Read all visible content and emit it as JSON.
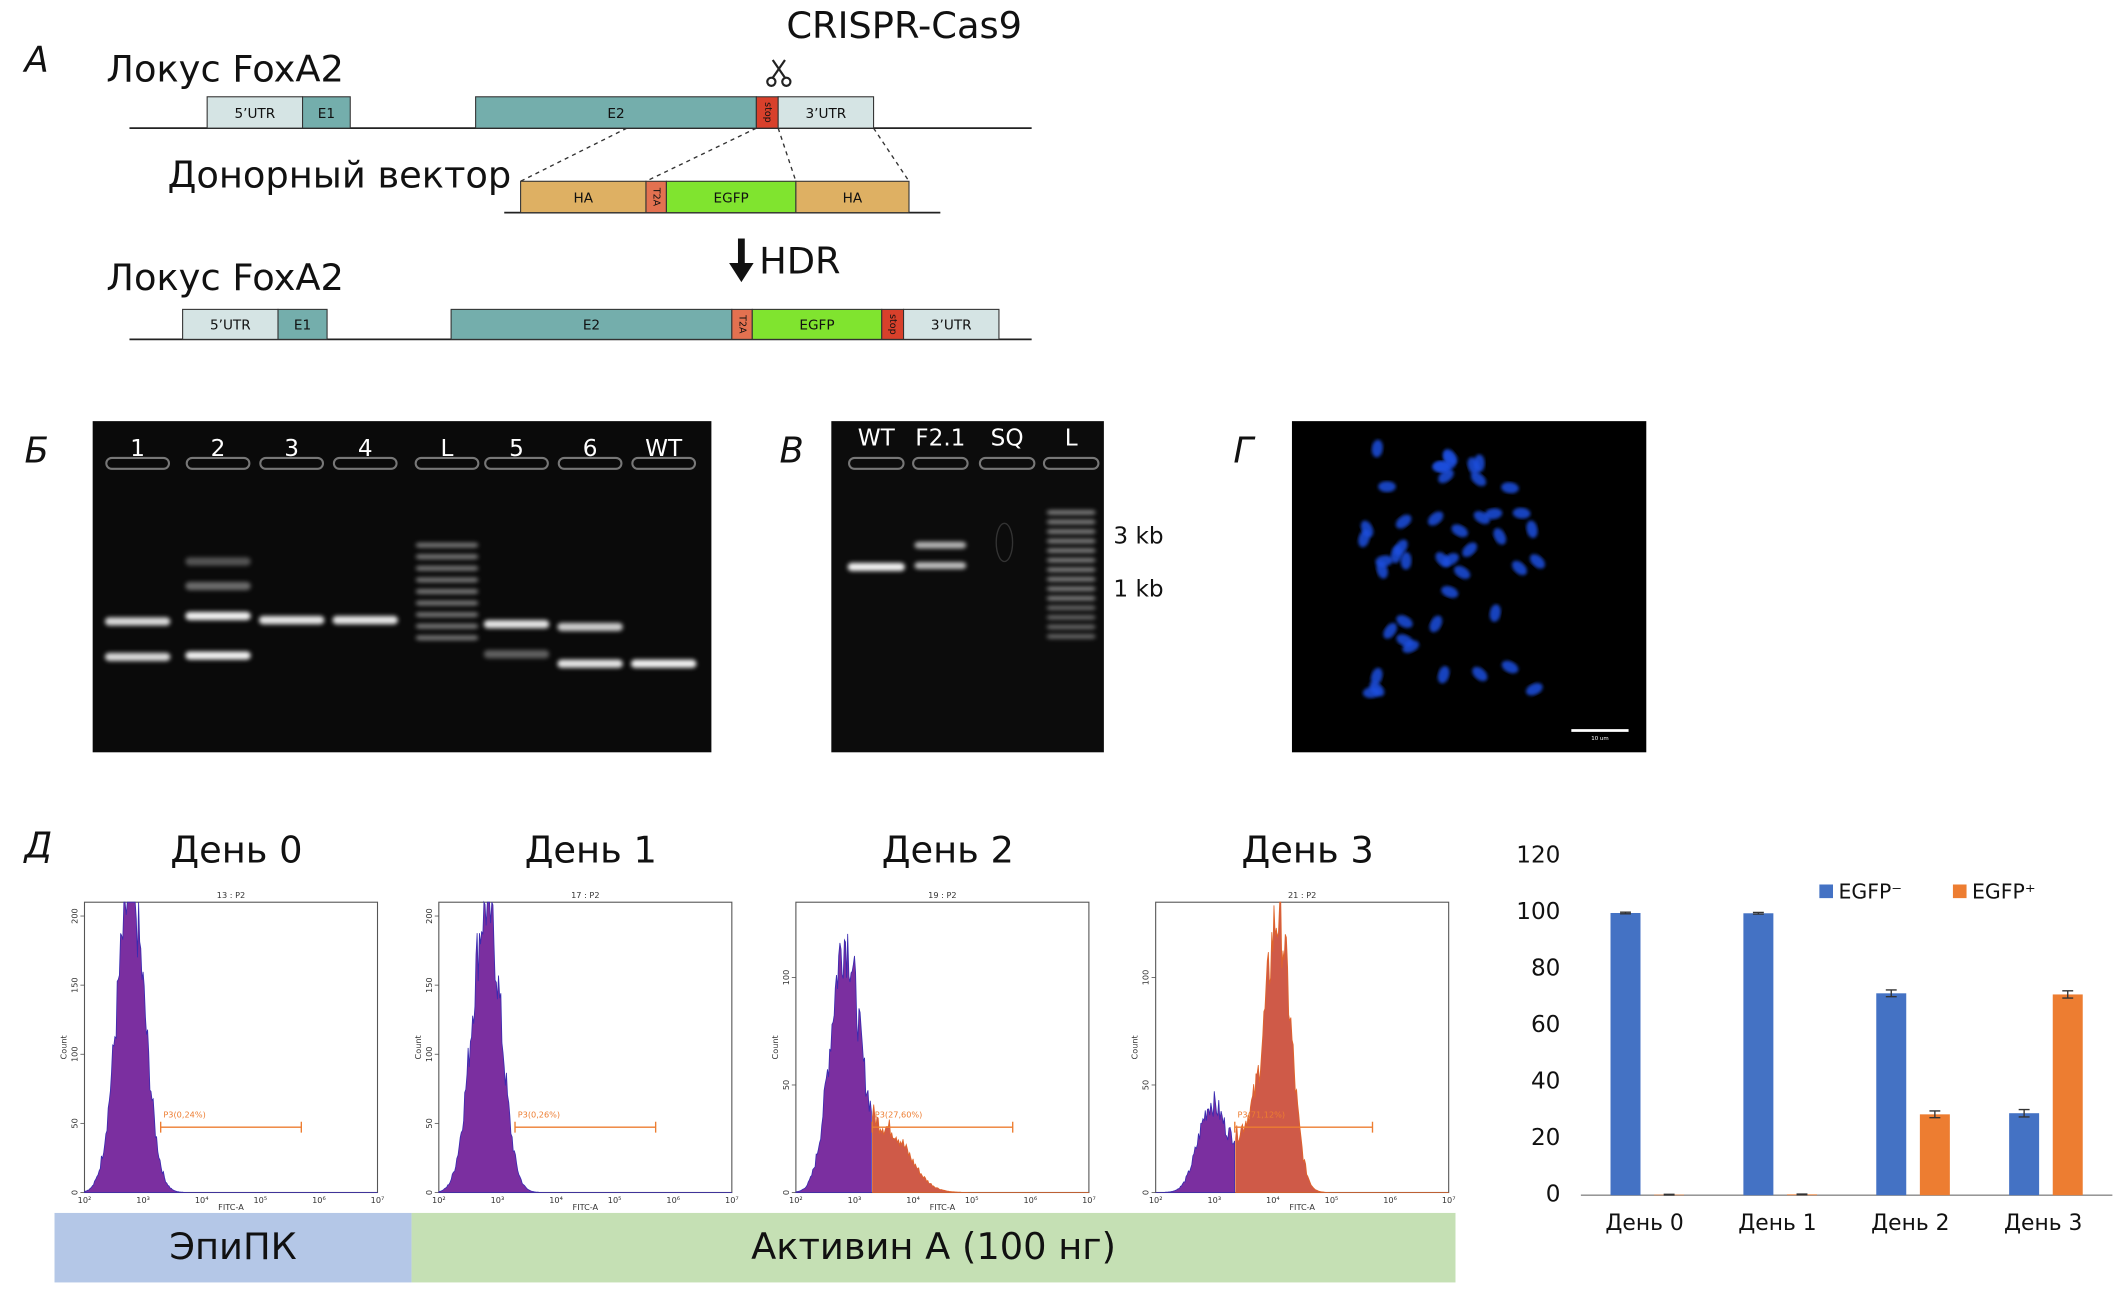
{
  "panel_labels": [
    "А",
    "Б",
    "В",
    "Г",
    "Д"
  ],
  "panel_a": {
    "crispr": "CRISPR-Cas9",
    "locus_top": "Локус FoxA2",
    "locus_top_parts": [
      "5’UTR",
      "E1",
      "E2",
      "stop",
      "3’UTR"
    ],
    "donor": "Донорный вектор",
    "donor_parts": [
      "HA",
      "T2A",
      "EGFP",
      "HA"
    ],
    "hdr": "HDR",
    "locus_bottom": "Локус FoxA2",
    "locus_bottom_parts": [
      "5’UTR",
      "E1",
      "E2",
      "T2A",
      "EGFP",
      "stop",
      "3’UTR"
    ]
  },
  "panel_b": {
    "lanes": [
      "1",
      "2",
      "3",
      "4",
      "L",
      "5",
      "6",
      "WT"
    ]
  },
  "panel_v": {
    "lanes": [
      "WT",
      "F2.1",
      "SQ",
      "L"
    ],
    "markers": [
      "3 kb",
      "1 kb"
    ]
  },
  "panel_g": {
    "scale_bar": "10 um"
  },
  "panel_d": {
    "days": [
      "День 0",
      "День 1",
      "День 2",
      "День 3"
    ],
    "y_label": "Count",
    "x_label": "FITC-A",
    "xticks": [
      "10²",
      "10³",
      "10⁴",
      "10⁵",
      "10⁶",
      "10⁷"
    ],
    "histograms": [
      {
        "title": "13 : P2",
        "gate": "P3(0,24%)",
        "ylim": [
          0,
          210
        ],
        "yticks": [
          0,
          50,
          100,
          150,
          200
        ]
      },
      {
        "title": "17 : P2",
        "gate": "P3(0,26%)",
        "ylim": [
          0,
          210
        ],
        "yticks": [
          0,
          50,
          100,
          150,
          200
        ]
      },
      {
        "title": "19 : P2",
        "gate": "P3(27,60%)",
        "ylim": [
          0,
          135
        ],
        "yticks": [
          0,
          50,
          100
        ]
      },
      {
        "title": "21 : P2",
        "gate": "P3(71,12%)",
        "ylim": [
          0,
          135
        ],
        "yticks": [
          0,
          50,
          100
        ]
      }
    ],
    "treatments": [
      "ЭпиПК",
      "Активин А (100 нг)"
    ]
  },
  "chart_data": {
    "type": "bar",
    "categories": [
      "День 0",
      "День 1",
      "День 2",
      "День 3"
    ],
    "series": [
      {
        "name": "EGFP⁻",
        "color": "#4472c4",
        "values": [
          99.8,
          99.7,
          71.4,
          29
        ],
        "errors": [
          0.3,
          0.3,
          1.2,
          1.3
        ]
      },
      {
        "name": "EGFP⁺",
        "color": "#ed7d31",
        "values": [
          0.2,
          0.3,
          28.6,
          71
        ],
        "errors": [
          0.1,
          0.1,
          1.2,
          1.3
        ]
      }
    ],
    "ylim": [
      0,
      120
    ],
    "yticks": [
      0,
      20,
      40,
      60,
      80,
      100,
      120
    ],
    "legend": "top-right"
  }
}
